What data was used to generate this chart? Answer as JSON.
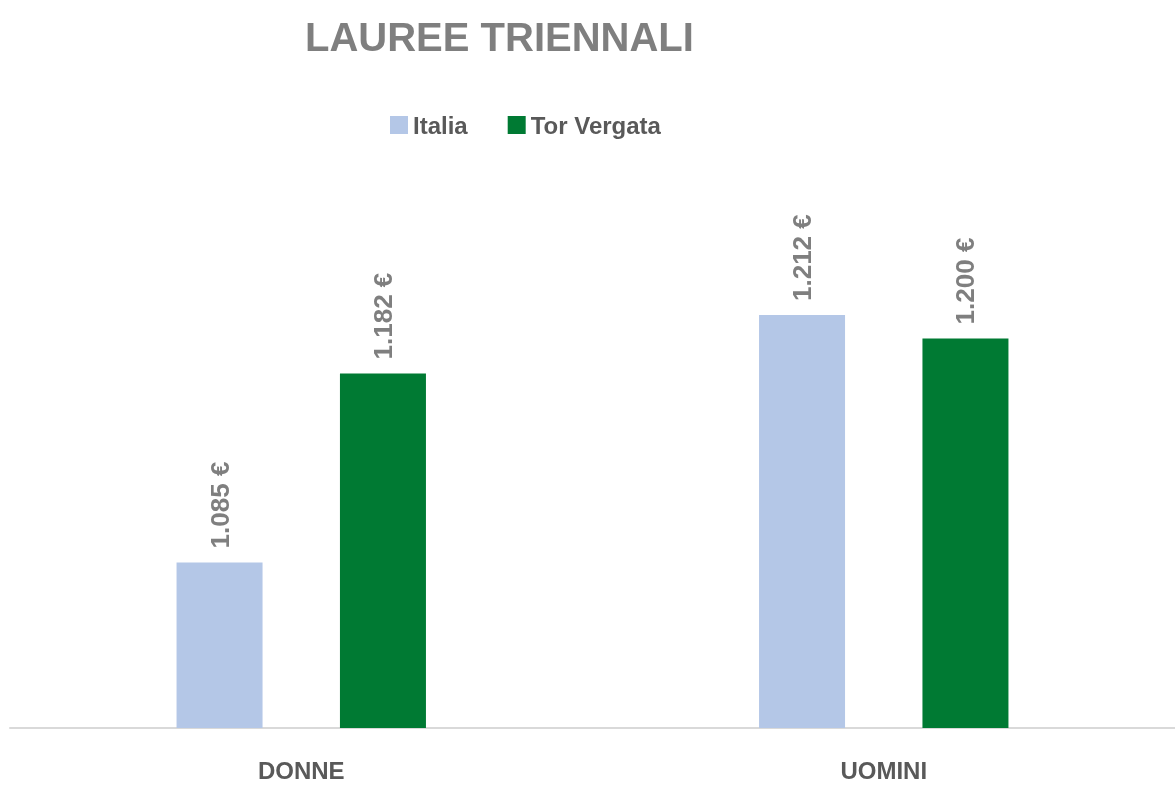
{
  "chart_data": {
    "type": "bar",
    "title": "LAUREE TRIENNALI",
    "categories": [
      "DONNE",
      "UOMINI"
    ],
    "series": [
      {
        "name": "Italia",
        "color": "#b4c7e7",
        "values": [
          1085,
          1212
        ],
        "value_labels": [
          "1.085 €",
          "1.212 €"
        ]
      },
      {
        "name": "Tor Vergata",
        "color": "#007a33",
        "values": [
          1182,
          1200
        ],
        "value_labels": [
          "1.182 €",
          "1.200 €"
        ]
      }
    ],
    "ylim": [
      1000,
      1212
    ],
    "tick_labels": "x",
    "legend": "top"
  }
}
